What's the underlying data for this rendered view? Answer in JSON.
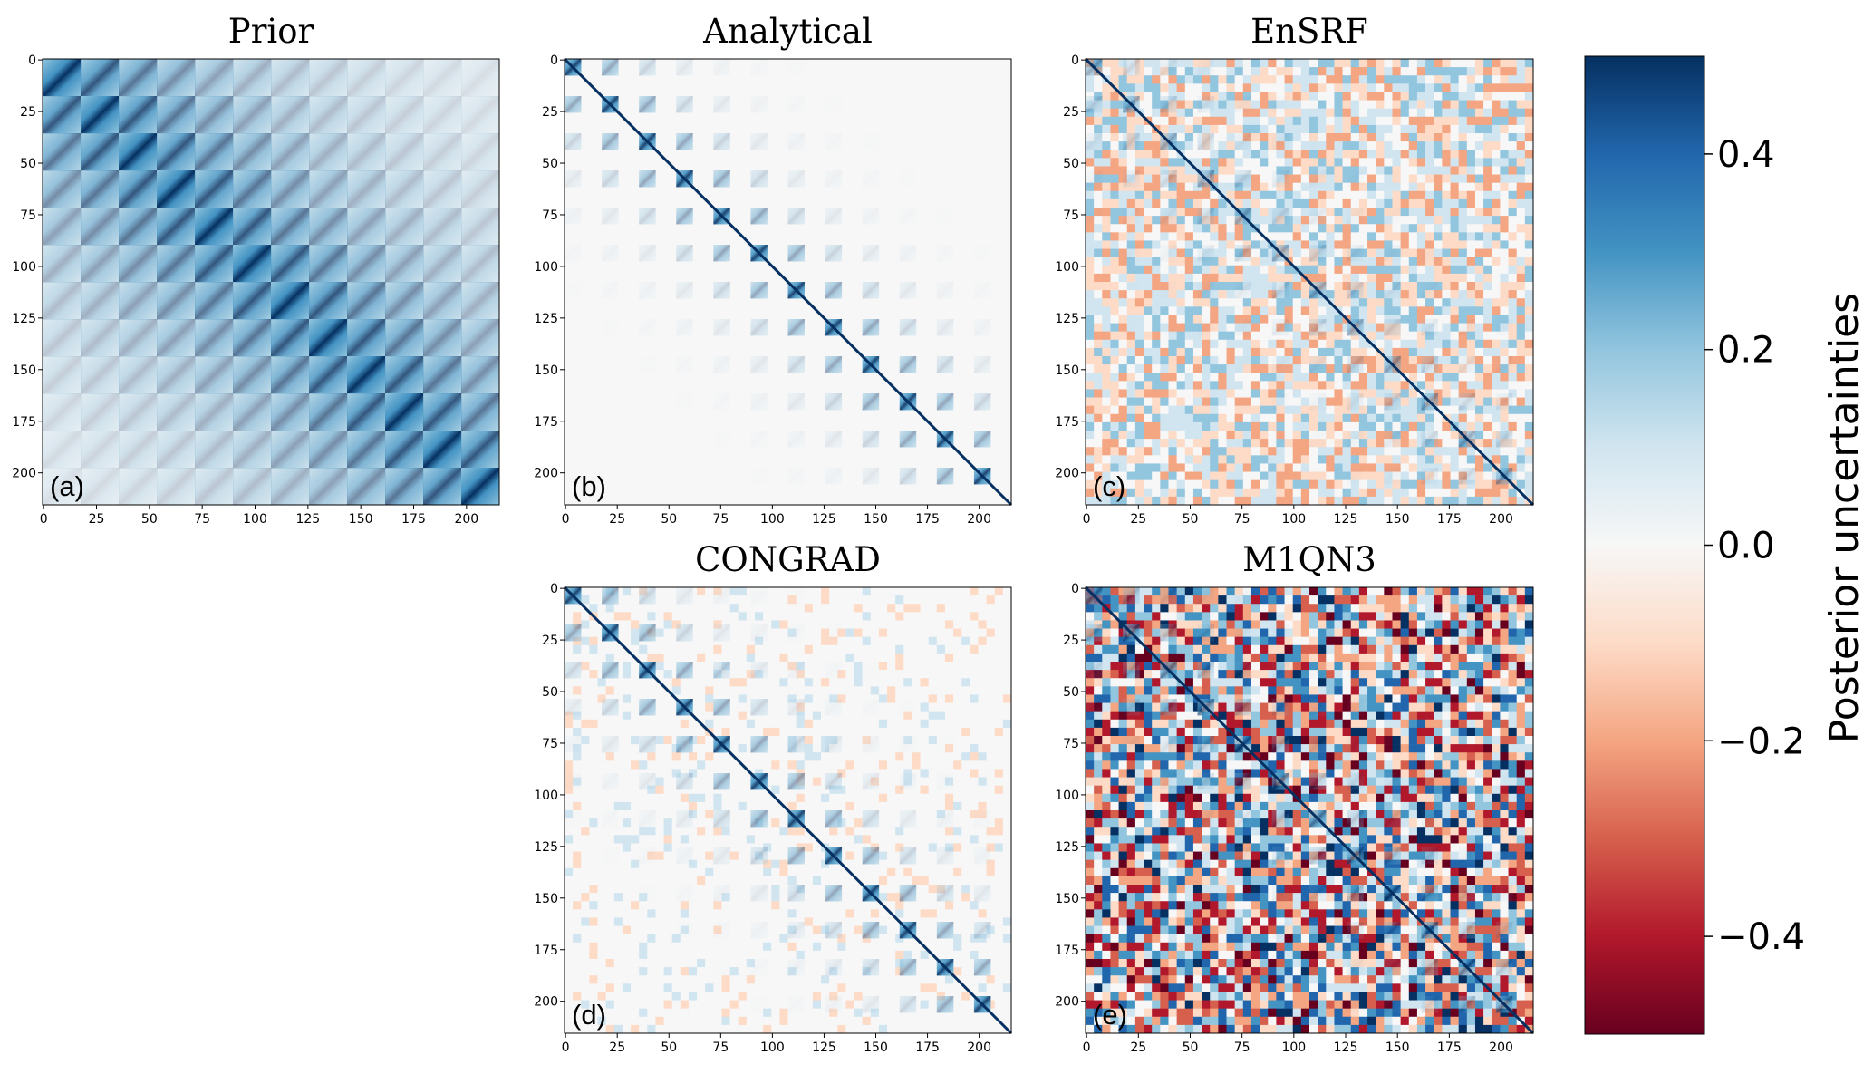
{
  "chart_data": [
    {
      "type": "heatmap",
      "title": "Prior",
      "panel_label": "(a)",
      "xlim": [
        -0.5,
        215.5
      ],
      "ylim": [
        215.5,
        -0.5
      ],
      "xticks": [
        0,
        25,
        50,
        75,
        100,
        125,
        150,
        175,
        200
      ],
      "yticks": [
        0,
        25,
        50,
        75,
        100,
        125,
        150,
        175,
        200
      ]
    },
    {
      "type": "heatmap",
      "title": "Analytical",
      "panel_label": "(b)",
      "xlim": [
        -0.5,
        215.5
      ],
      "ylim": [
        215.5,
        -0.5
      ],
      "xticks": [
        0,
        25,
        50,
        75,
        100,
        125,
        150,
        175,
        200
      ],
      "yticks": [
        0,
        25,
        50,
        75,
        100,
        125,
        150,
        175,
        200
      ]
    },
    {
      "type": "heatmap",
      "title": "EnSRF",
      "panel_label": "(c)",
      "xlim": [
        -0.5,
        215.5
      ],
      "ylim": [
        215.5,
        -0.5
      ],
      "xticks": [
        0,
        25,
        50,
        75,
        100,
        125,
        150,
        175,
        200
      ],
      "yticks": [
        0,
        25,
        50,
        75,
        100,
        125,
        150,
        175,
        200
      ]
    },
    {
      "type": "heatmap",
      "title": "CONGRAD",
      "panel_label": "(d)",
      "xlim": [
        -0.5,
        215.5
      ],
      "ylim": [
        215.5,
        -0.5
      ],
      "xticks": [
        0,
        25,
        50,
        75,
        100,
        125,
        150,
        175,
        200
      ],
      "yticks": [
        0,
        25,
        50,
        75,
        100,
        125,
        150,
        175,
        200
      ]
    },
    {
      "type": "heatmap",
      "title": "M1QN3",
      "panel_label": "(e)",
      "xlim": [
        -0.5,
        215.5
      ],
      "ylim": [
        215.5,
        -0.5
      ],
      "xticks": [
        0,
        25,
        50,
        75,
        100,
        125,
        150,
        175,
        200
      ],
      "yticks": [
        0,
        25,
        50,
        75,
        100,
        125,
        150,
        175,
        200
      ]
    },
    {
      "type": "colorbar",
      "label": "Posterior uncertainties",
      "clim": [
        -0.5,
        0.5
      ],
      "ticks": [
        {
          "value": -0.4,
          "label": "−0.4"
        },
        {
          "value": -0.2,
          "label": "−0.2"
        },
        {
          "value": 0.0,
          "label": "0.0"
        },
        0.2,
        0.4
      ],
      "colors": [
        "#67001f",
        "#b2182b",
        "#d6604d",
        "#f4a582",
        "#fddbc7",
        "#f7f7f7",
        "#d1e5f0",
        "#92c5de",
        "#4393c3",
        "#2166ac",
        "#053061"
      ]
    }
  ]
}
